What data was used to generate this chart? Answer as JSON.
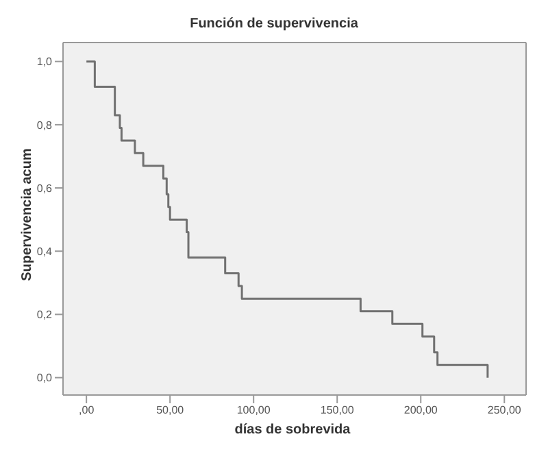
{
  "chart_data": {
    "type": "step",
    "title": "Función de supervivencia",
    "xlabel": "días de sobrevida",
    "ylabel": "Supervivencia acum",
    "x": [
      0,
      5,
      17,
      20,
      21,
      29,
      34,
      46,
      48,
      49,
      50,
      60,
      61,
      83,
      91,
      93,
      164,
      183,
      201,
      208,
      210,
      240
    ],
    "values": [
      1,
      0.92,
      0.83,
      0.79,
      0.75,
      0.71,
      0.67,
      0.63,
      0.58,
      0.54,
      0.5,
      0.46,
      0.38,
      0.33,
      0.29,
      0.25,
      0.21,
      0.17,
      0.13,
      0.08,
      0.04,
      0
    ],
    "color": "#707070",
    "xlim": [
      -14,
      263
    ],
    "ylim": [
      -0.055,
      1.06
    ],
    "xticks": [
      {
        "value": 0,
        "label": ",00"
      },
      {
        "value": 50,
        "label": "50,00"
      },
      {
        "value": 100,
        "label": "100,00"
      },
      {
        "value": 150,
        "label": "150,00"
      },
      {
        "value": 200,
        "label": "200,00"
      },
      {
        "value": 250,
        "label": "250,00"
      }
    ],
    "yticks": [
      {
        "value": 0,
        "label": "0,0"
      },
      {
        "value": 0.2,
        "label": "0,2"
      },
      {
        "value": 0.4,
        "label": "0,4"
      },
      {
        "value": 0.6,
        "label": "0,6"
      },
      {
        "value": 0.8,
        "label": "0,8"
      },
      {
        "value": 1,
        "label": "1,0"
      }
    ],
    "grid": false,
    "marker": "none",
    "line_style": "solid"
  }
}
